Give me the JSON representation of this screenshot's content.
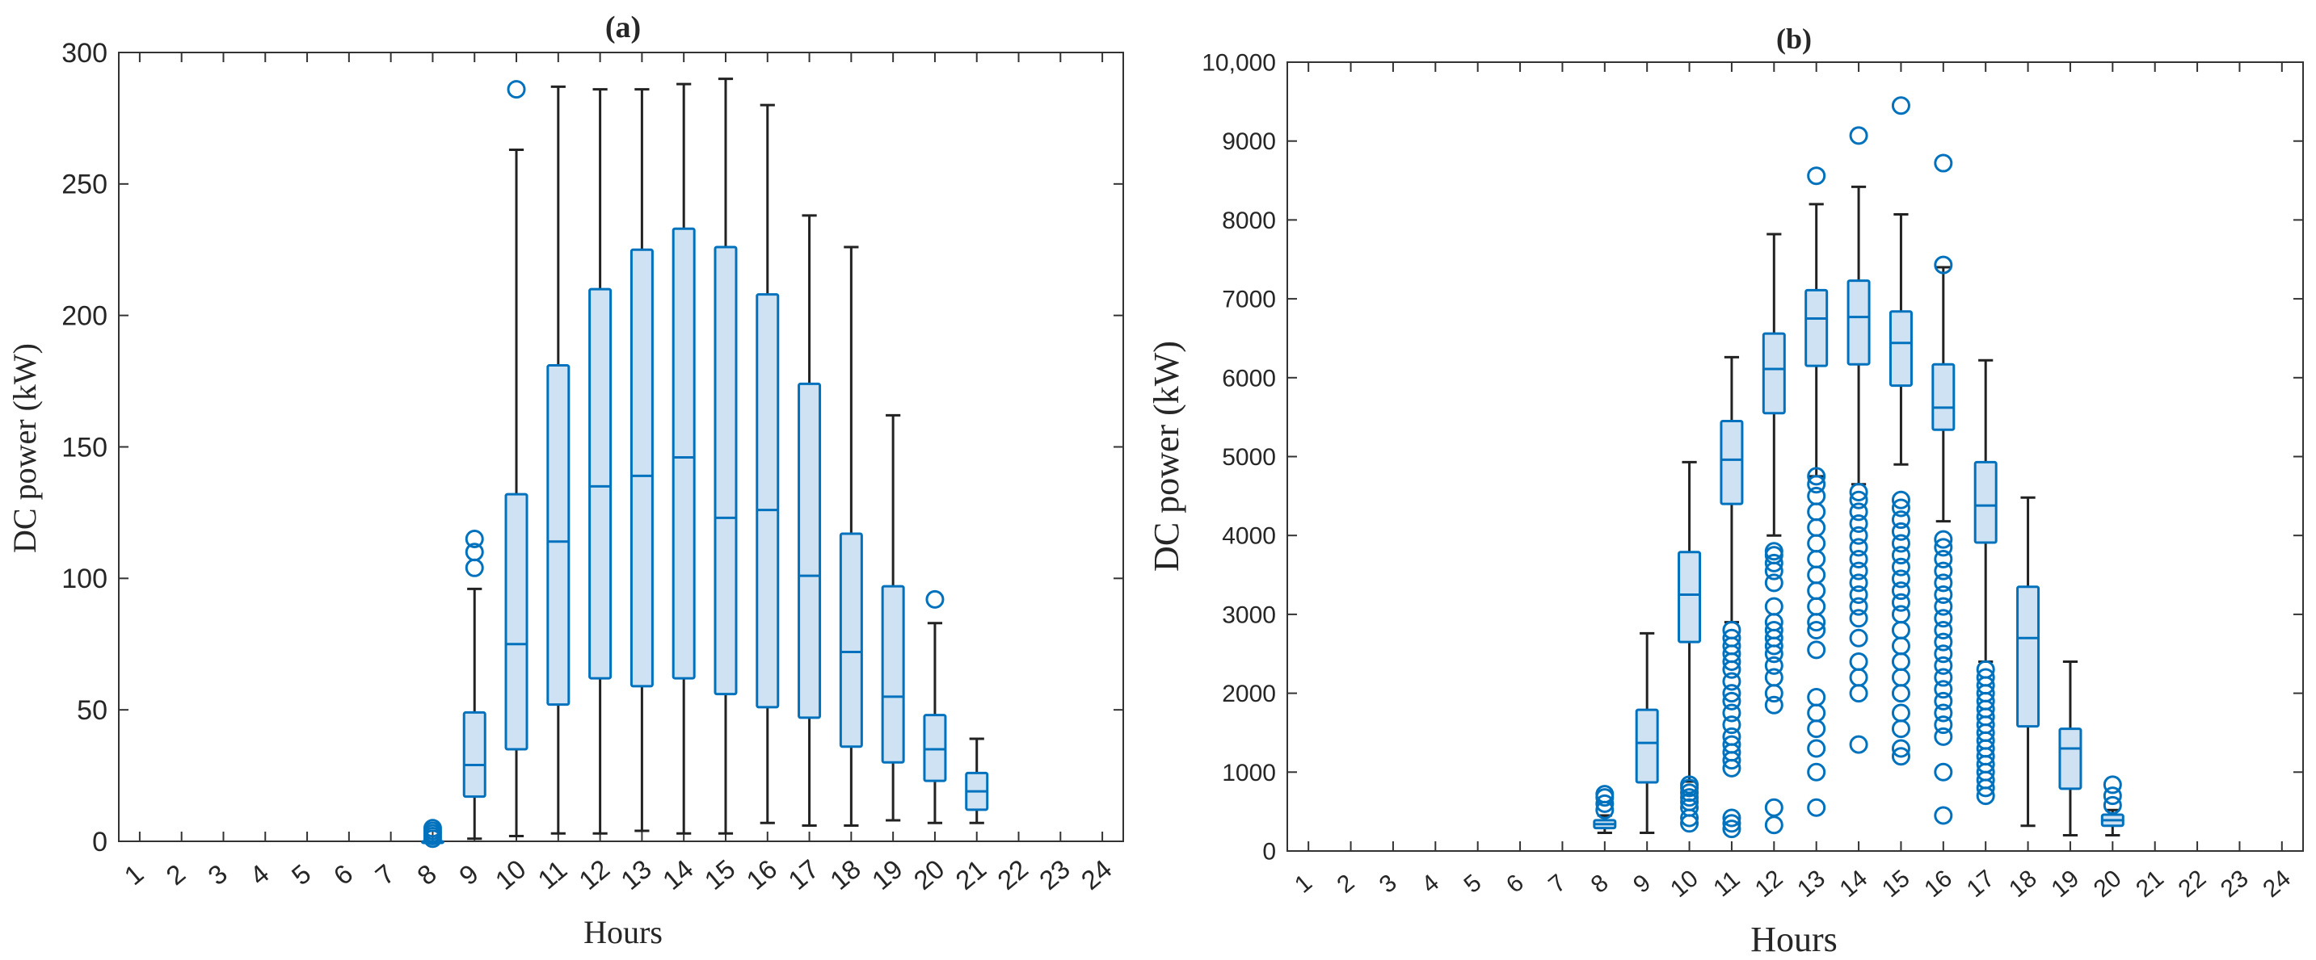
{
  "colors": {
    "box_fill": "#cfe2f3",
    "box_stroke": "#0072BD",
    "whisker": "#222222",
    "axis": "#333333",
    "outlier": "#0072BD"
  },
  "chart_data": [
    {
      "type": "boxplot",
      "title": "(a)",
      "xlabel": "Hours",
      "ylabel": "DC power (kW)",
      "categories": [
        "1",
        "2",
        "3",
        "4",
        "5",
        "6",
        "7",
        "8",
        "9",
        "10",
        "11",
        "12",
        "13",
        "14",
        "15",
        "16",
        "17",
        "18",
        "19",
        "20",
        "21",
        "22",
        "23",
        "24"
      ],
      "ylim": [
        0,
        300
      ],
      "yticks": [
        0,
        50,
        100,
        150,
        200,
        250,
        300
      ],
      "ytick_labels": [
        "0",
        "50",
        "100",
        "150",
        "200",
        "250",
        "300"
      ],
      "grid": false,
      "boxes": [
        {
          "hour": 8,
          "min": 0,
          "q1": 0,
          "median": 0,
          "q3": 0,
          "max": 0,
          "outliers": [
            1,
            2,
            3,
            4,
            5
          ]
        },
        {
          "hour": 9,
          "min": 1,
          "q1": 17,
          "median": 29,
          "q3": 49,
          "max": 96,
          "outliers": [
            104,
            110,
            115
          ]
        },
        {
          "hour": 10,
          "min": 2,
          "q1": 35,
          "median": 75,
          "q3": 132,
          "max": 263,
          "outliers": [
            286
          ]
        },
        {
          "hour": 11,
          "min": 3,
          "q1": 52,
          "median": 114,
          "q3": 181,
          "max": 287,
          "outliers": []
        },
        {
          "hour": 12,
          "min": 3,
          "q1": 62,
          "median": 135,
          "q3": 210,
          "max": 286,
          "outliers": []
        },
        {
          "hour": 13,
          "min": 4,
          "q1": 59,
          "median": 139,
          "q3": 225,
          "max": 286,
          "outliers": []
        },
        {
          "hour": 14,
          "min": 3,
          "q1": 62,
          "median": 146,
          "q3": 233,
          "max": 288,
          "outliers": []
        },
        {
          "hour": 15,
          "min": 3,
          "q1": 56,
          "median": 123,
          "q3": 226,
          "max": 290,
          "outliers": []
        },
        {
          "hour": 16,
          "min": 7,
          "q1": 51,
          "median": 126,
          "q3": 208,
          "max": 280,
          "outliers": []
        },
        {
          "hour": 17,
          "min": 6,
          "q1": 47,
          "median": 101,
          "q3": 174,
          "max": 238,
          "outliers": []
        },
        {
          "hour": 18,
          "min": 6,
          "q1": 36,
          "median": 72,
          "q3": 117,
          "max": 226,
          "outliers": []
        },
        {
          "hour": 19,
          "min": 8,
          "q1": 30,
          "median": 55,
          "q3": 97,
          "max": 162,
          "outliers": []
        },
        {
          "hour": 20,
          "min": 7,
          "q1": 23,
          "median": 35,
          "q3": 48,
          "max": 83,
          "outliers": [
            92
          ]
        },
        {
          "hour": 21,
          "min": 7,
          "q1": 12,
          "median": 19,
          "q3": 26,
          "max": 39,
          "outliers": []
        }
      ]
    },
    {
      "type": "boxplot",
      "title": "(b)",
      "xlabel": "Hours",
      "ylabel": "DC power (kW)",
      "categories": [
        "1",
        "2",
        "3",
        "4",
        "5",
        "6",
        "7",
        "8",
        "9",
        "10",
        "11",
        "12",
        "13",
        "14",
        "15",
        "16",
        "17",
        "18",
        "19",
        "20",
        "21",
        "22",
        "23",
        "24"
      ],
      "ylim": [
        0,
        10000
      ],
      "yticks": [
        0,
        1000,
        2000,
        3000,
        4000,
        5000,
        6000,
        7000,
        8000,
        9000,
        10000
      ],
      "ytick_labels": [
        "0",
        "1000",
        "2000",
        "3000",
        "4000",
        "5000",
        "6000",
        "7000",
        "8000",
        "9000",
        "10,000"
      ],
      "grid": false,
      "boxes": [
        {
          "hour": 8,
          "min": 230,
          "q1": 290,
          "median": 340,
          "q3": 390,
          "max": 450,
          "outliers": [
            520,
            600,
            680,
            720
          ]
        },
        {
          "hour": 9,
          "min": 230,
          "q1": 870,
          "median": 1370,
          "q3": 1790,
          "max": 2760,
          "outliers": []
        },
        {
          "hour": 10,
          "min": 880,
          "q1": 2650,
          "median": 3250,
          "q3": 3790,
          "max": 4930,
          "outliers": [
            350,
            420,
            550,
            620,
            680,
            740,
            800,
            840
          ]
        },
        {
          "hour": 11,
          "min": 2900,
          "q1": 4400,
          "median": 4960,
          "q3": 5450,
          "max": 6260,
          "outliers": [
            280,
            350,
            420,
            1050,
            1150,
            1250,
            1350,
            1450,
            1600,
            1750,
            1900,
            2000,
            2150,
            2300,
            2400,
            2500,
            2600,
            2700,
            2800
          ]
        },
        {
          "hour": 12,
          "min": 4000,
          "q1": 5550,
          "median": 6110,
          "q3": 6560,
          "max": 7820,
          "outliers": [
            330,
            550,
            1850,
            2000,
            2200,
            2350,
            2500,
            2600,
            2700,
            2800,
            2900,
            3100,
            3400,
            3550,
            3650,
            3750,
            3800
          ]
        },
        {
          "hour": 13,
          "min": 4750,
          "q1": 6150,
          "median": 6750,
          "q3": 7110,
          "max": 8200,
          "outliers": [
            550,
            1000,
            1300,
            1550,
            1750,
            1950,
            2550,
            2800,
            2900,
            3100,
            3300,
            3500,
            3700,
            3900,
            4100,
            4300,
            4500,
            4650,
            4750,
            8560
          ]
        },
        {
          "hour": 14,
          "min": 4650,
          "q1": 6170,
          "median": 6770,
          "q3": 7230,
          "max": 8420,
          "outliers": [
            1350,
            2000,
            2200,
            2400,
            2700,
            2950,
            3100,
            3250,
            3400,
            3550,
            3700,
            3850,
            4000,
            4150,
            4300,
            4450,
            4550,
            9070
          ]
        },
        {
          "hour": 15,
          "min": 4900,
          "q1": 5900,
          "median": 6440,
          "q3": 6840,
          "max": 8070,
          "outliers": [
            1200,
            1300,
            1550,
            1750,
            2000,
            2200,
            2400,
            2600,
            2800,
            3000,
            3150,
            3300,
            3450,
            3600,
            3750,
            3900,
            4050,
            4200,
            4350,
            4450,
            9450
          ]
        },
        {
          "hour": 16,
          "min": 4180,
          "q1": 5340,
          "median": 5620,
          "q3": 6170,
          "max": 7400,
          "outliers": [
            450,
            1000,
            1450,
            1600,
            1750,
            1900,
            2050,
            2200,
            2350,
            2500,
            2650,
            2800,
            2950,
            3100,
            3250,
            3400,
            3550,
            3700,
            3850,
            3950,
            7430,
            8720
          ]
        },
        {
          "hour": 17,
          "min": 2400,
          "q1": 3910,
          "median": 4380,
          "q3": 4930,
          "max": 6220,
          "outliers": [
            700,
            800,
            900,
            1000,
            1100,
            1200,
            1300,
            1400,
            1500,
            1600,
            1700,
            1800,
            1900,
            2000,
            2100,
            2200,
            2300
          ]
        },
        {
          "hour": 18,
          "min": 320,
          "q1": 1580,
          "median": 2700,
          "q3": 3350,
          "max": 4480,
          "outliers": []
        },
        {
          "hour": 19,
          "min": 200,
          "q1": 790,
          "median": 1300,
          "q3": 1550,
          "max": 2400,
          "outliers": []
        },
        {
          "hour": 20,
          "min": 200,
          "q1": 320,
          "median": 390,
          "q3": 460,
          "max": 520,
          "outliers": [
            580,
            700,
            840
          ]
        }
      ]
    }
  ]
}
